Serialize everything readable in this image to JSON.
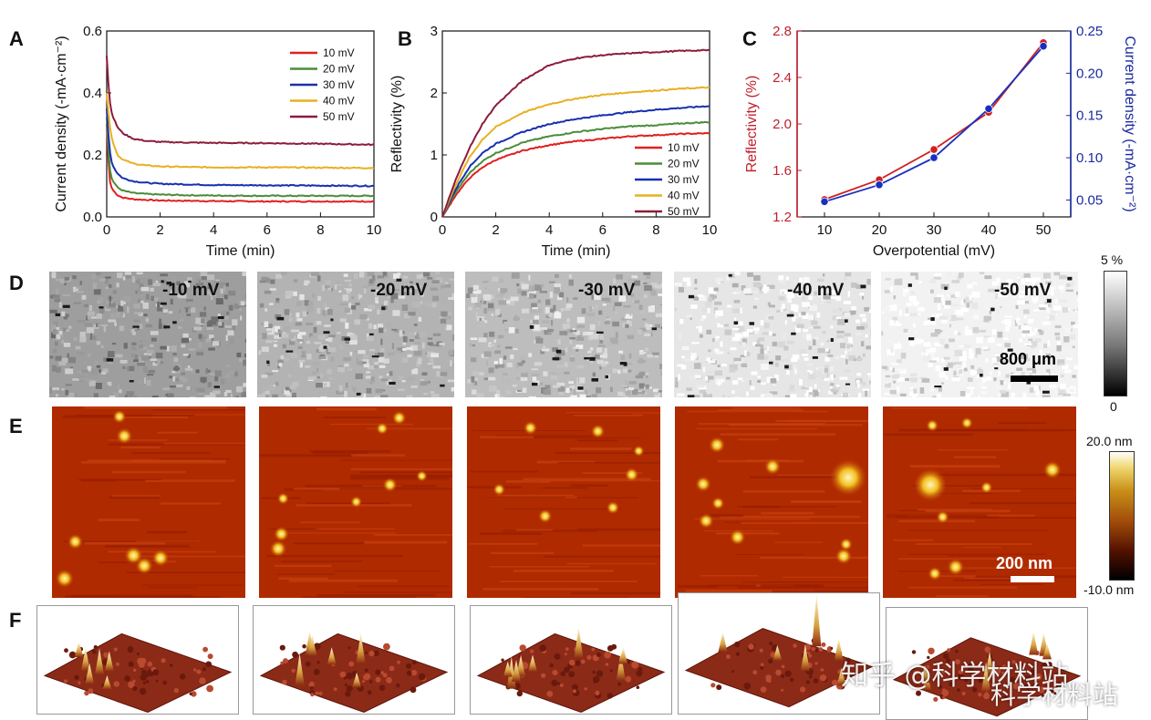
{
  "panels": {
    "A": "A",
    "B": "B",
    "C": "C",
    "D": "D",
    "E": "E",
    "F": "F"
  },
  "chart_data": [
    {
      "id": "A",
      "type": "line",
      "xlabel": "Time (min)",
      "ylabel": "Current density (-mA·cm⁻²)",
      "xlim": [
        0,
        10
      ],
      "ylim": [
        0,
        0.6
      ],
      "xticks": [
        "0",
        "2",
        "4",
        "6",
        "8",
        "10"
      ],
      "yticks": [
        "0.0",
        "0.2",
        "0.4",
        "0.6"
      ],
      "legend_position": "upper-right",
      "series": [
        {
          "name": "10 mV",
          "color": "#e02020",
          "x": [
            0,
            0.1,
            0.2,
            0.4,
            0.6,
            1.0,
            1.5,
            2,
            3,
            4,
            6,
            8,
            10
          ],
          "y": [
            0.3,
            0.12,
            0.09,
            0.07,
            0.062,
            0.057,
            0.055,
            0.053,
            0.052,
            0.051,
            0.05,
            0.05,
            0.05
          ]
        },
        {
          "name": "20 mV",
          "color": "#4a8c3a",
          "x": [
            0,
            0.1,
            0.2,
            0.4,
            0.6,
            1.0,
            1.5,
            2,
            3,
            4,
            6,
            8,
            10
          ],
          "y": [
            0.32,
            0.16,
            0.12,
            0.095,
            0.085,
            0.077,
            0.074,
            0.072,
            0.07,
            0.069,
            0.068,
            0.068,
            0.068
          ]
        },
        {
          "name": "30 mV",
          "color": "#1830b0",
          "x": [
            0,
            0.1,
            0.2,
            0.4,
            0.6,
            1.0,
            1.5,
            2,
            3,
            4,
            6,
            8,
            10
          ],
          "y": [
            0.35,
            0.22,
            0.17,
            0.14,
            0.125,
            0.115,
            0.11,
            0.107,
            0.105,
            0.103,
            0.102,
            0.101,
            0.1
          ]
        },
        {
          "name": "40 mV",
          "color": "#e8b020",
          "x": [
            0,
            0.1,
            0.2,
            0.4,
            0.6,
            1.0,
            1.5,
            2,
            3,
            4,
            6,
            8,
            10
          ],
          "y": [
            0.4,
            0.3,
            0.25,
            0.2,
            0.185,
            0.172,
            0.166,
            0.163,
            0.161,
            0.16,
            0.16,
            0.159,
            0.158
          ]
        },
        {
          "name": "50 mV",
          "color": "#8c1c3a",
          "x": [
            0,
            0.1,
            0.2,
            0.4,
            0.6,
            1.0,
            1.5,
            2,
            3,
            4,
            6,
            8,
            10
          ],
          "y": [
            0.52,
            0.38,
            0.33,
            0.29,
            0.27,
            0.252,
            0.245,
            0.242,
            0.24,
            0.239,
            0.238,
            0.236,
            0.233
          ]
        }
      ]
    },
    {
      "id": "B",
      "type": "line",
      "xlabel": "Time (min)",
      "ylabel": "Reflectivity (%)",
      "xlim": [
        0,
        10
      ],
      "ylim": [
        0,
        3
      ],
      "xticks": [
        "0",
        "2",
        "4",
        "6",
        "8",
        "10"
      ],
      "yticks": [
        "0",
        "1",
        "2",
        "3"
      ],
      "legend_position": "lower-right",
      "series": [
        {
          "name": "10 mV",
          "color": "#e02020",
          "x": [
            0,
            0.5,
            1,
            1.5,
            2,
            3,
            4,
            5,
            6,
            7,
            8,
            9,
            10
          ],
          "y": [
            0,
            0.35,
            0.62,
            0.8,
            0.92,
            1.07,
            1.16,
            1.22,
            1.26,
            1.3,
            1.32,
            1.34,
            1.35
          ]
        },
        {
          "name": "20 mV",
          "color": "#4a8c3a",
          "x": [
            0,
            0.5,
            1,
            1.5,
            2,
            3,
            4,
            5,
            6,
            7,
            8,
            9,
            10
          ],
          "y": [
            0,
            0.4,
            0.7,
            0.9,
            1.03,
            1.2,
            1.3,
            1.37,
            1.42,
            1.46,
            1.48,
            1.51,
            1.53
          ]
        },
        {
          "name": "30 mV",
          "color": "#1830b0",
          "x": [
            0,
            0.5,
            1,
            1.5,
            2,
            3,
            4,
            5,
            6,
            7,
            8,
            9,
            10
          ],
          "y": [
            0,
            0.45,
            0.8,
            1.03,
            1.18,
            1.37,
            1.5,
            1.58,
            1.64,
            1.69,
            1.73,
            1.76,
            1.79
          ]
        },
        {
          "name": "40 mV",
          "color": "#e8b020",
          "x": [
            0,
            0.5,
            1,
            1.5,
            2,
            3,
            4,
            5,
            6,
            7,
            8,
            9,
            10
          ],
          "y": [
            0,
            0.52,
            0.95,
            1.25,
            1.45,
            1.68,
            1.82,
            1.91,
            1.97,
            2.01,
            2.04,
            2.07,
            2.09
          ]
        },
        {
          "name": "50 mV",
          "color": "#8c1c3a",
          "x": [
            0,
            0.5,
            1,
            1.5,
            2,
            3,
            4,
            5,
            6,
            7,
            8,
            9,
            10
          ],
          "y": [
            0,
            0.6,
            1.1,
            1.5,
            1.8,
            2.2,
            2.45,
            2.56,
            2.61,
            2.64,
            2.66,
            2.68,
            2.69
          ]
        }
      ]
    },
    {
      "id": "C",
      "type": "line",
      "xlabel": "Overpotential (mV)",
      "ylabel_left": "Reflectivity (%)",
      "ylabel_right": "Current density (-mA·cm⁻²)",
      "x": [
        10,
        20,
        30,
        40,
        50
      ],
      "xticks": [
        "10",
        "20",
        "30",
        "40",
        "50"
      ],
      "xlim": [
        5,
        55
      ],
      "ylim_left": [
        1.2,
        2.8
      ],
      "yticks_left": [
        "1.2",
        "1.6",
        "2.0",
        "2.4",
        "2.8"
      ],
      "ylim_right": [
        0.03,
        0.25
      ],
      "yticks_right": [
        "0.05",
        "0.10",
        "0.15",
        "0.20",
        "0.25"
      ],
      "left_color": "#c0202a",
      "right_color": "#1a2aa0",
      "series": [
        {
          "name": "Reflectivity",
          "axis": "left",
          "color": "#d02020",
          "values": [
            1.35,
            1.52,
            1.78,
            2.1,
            2.7
          ]
        },
        {
          "name": "Current density",
          "axis": "right",
          "color": "#1830c0",
          "values": [
            0.048,
            0.068,
            0.1,
            0.158,
            0.232
          ]
        }
      ]
    }
  ],
  "row_d": {
    "labels": [
      "-10 mV",
      "-20 mV",
      "-30 mV",
      "-40 mV",
      "-50 mV"
    ],
    "brightness": [
      0.62,
      0.7,
      0.74,
      0.9,
      0.95
    ],
    "scale_label": "800 μm",
    "colorbar_top": "5 %",
    "colorbar_bottom": "0"
  },
  "row_e": {
    "scale_label": "200 nm",
    "colorbar_top": "20.0 nm",
    "colorbar_bottom": "-10.0 nm"
  },
  "watermark": {
    "line1": "知乎 @科学材料站",
    "line2": "科学材料站"
  }
}
